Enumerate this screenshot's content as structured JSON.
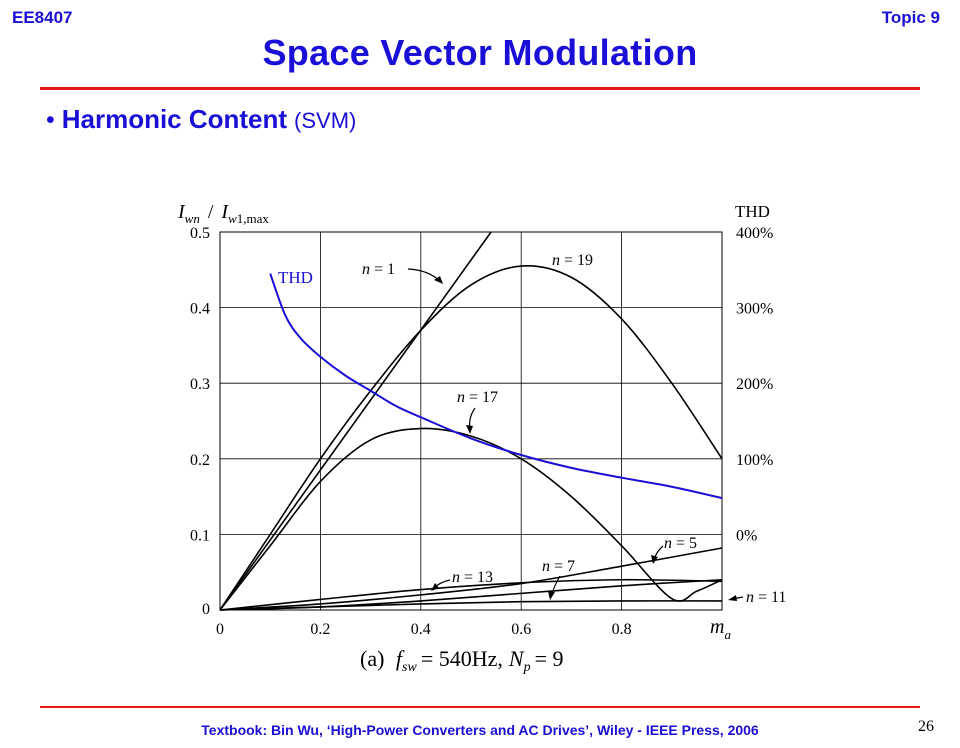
{
  "header": {
    "course": "EE8407",
    "topic": "Topic 9"
  },
  "title": "Space Vector Modulation",
  "bullet": {
    "bullet_char": "•",
    "heading": "Harmonic Content",
    "sub": "(SVM)"
  },
  "footer": "Textbook: Bin Wu, ‘High-Power Converters and AC Drives’, Wiley - IEEE Press, 2006",
  "page_number": "26",
  "colors": {
    "accent": "#1a0fd6",
    "rule": "#e01b1b",
    "thd_curve": "#1a0fd6",
    "harmonic_curves": "#000000"
  },
  "chart_data": {
    "type": "line",
    "ylabel_left": "I_wn / I_w1,max",
    "ylabel_right": "THD",
    "xlabel": "m_a",
    "x_ticks": [
      "0",
      "0.2",
      "0.4",
      "0.6",
      "0.8"
    ],
    "y_ticks_left": [
      "0",
      "0.1",
      "0.2",
      "0.3",
      "0.4",
      "0.5"
    ],
    "y_ticks_right": [
      "0%",
      "100%",
      "200%",
      "300%",
      "400%"
    ],
    "xlim": [
      0,
      1.08
    ],
    "ylim": [
      0,
      0.5
    ],
    "thd_scale": {
      "percent_zero_at_y": 0.1,
      "percent_per_0_1_y": 100
    },
    "grid": true,
    "caption": {
      "prefix": "(a)",
      "text": "f_sw = 540Hz, N_p = 9"
    },
    "series": [
      {
        "name": "n = 1",
        "axis": "left",
        "x": [
          0,
          0.54
        ],
        "y": [
          0,
          0.5
        ]
      },
      {
        "name": "n = 19",
        "axis": "left",
        "x": [
          0,
          0.1,
          0.2,
          0.3,
          0.4,
          0.5,
          0.6,
          0.7,
          0.8,
          0.9,
          1.0
        ],
        "y": [
          0,
          0.1,
          0.2,
          0.29,
          0.37,
          0.43,
          0.455,
          0.44,
          0.385,
          0.3,
          0.2
        ]
      },
      {
        "name": "n = 17",
        "axis": "left",
        "x": [
          0,
          0.1,
          0.2,
          0.3,
          0.4,
          0.5,
          0.6,
          0.7,
          0.8,
          0.9,
          0.95,
          1.0
        ],
        "y": [
          0,
          0.085,
          0.17,
          0.225,
          0.24,
          0.23,
          0.2,
          0.15,
          0.085,
          0.015,
          0.025,
          0.04
        ]
      },
      {
        "name": "n = 5",
        "axis": "left",
        "x": [
          0,
          0.2,
          0.4,
          0.6,
          0.8,
          1.0
        ],
        "y": [
          0,
          0.008,
          0.02,
          0.035,
          0.058,
          0.082
        ]
      },
      {
        "name": "n = 7",
        "axis": "left",
        "x": [
          0,
          0.2,
          0.4,
          0.6,
          0.8,
          1.0
        ],
        "y": [
          0,
          0.004,
          0.012,
          0.022,
          0.032,
          0.04
        ]
      },
      {
        "name": "n = 13",
        "axis": "left",
        "x": [
          0,
          0.2,
          0.4,
          0.6,
          0.8,
          1.0
        ],
        "y": [
          0,
          0.014,
          0.027,
          0.036,
          0.04,
          0.038
        ]
      },
      {
        "name": "n = 11",
        "axis": "left",
        "x": [
          0,
          0.2,
          0.4,
          0.6,
          0.8,
          1.0
        ],
        "y": [
          0,
          0.004,
          0.008,
          0.011,
          0.012,
          0.012
        ]
      },
      {
        "name": "THD",
        "axis": "right",
        "x": [
          0.1,
          0.13,
          0.16,
          0.2,
          0.25,
          0.3,
          0.35,
          0.4,
          0.5,
          0.6,
          0.7,
          0.8,
          0.9,
          1.0
        ],
        "y": [
          0.445,
          0.39,
          0.36,
          0.335,
          0.31,
          0.29,
          0.27,
          0.255,
          0.227,
          0.205,
          0.188,
          0.175,
          0.163,
          0.148
        ]
      }
    ]
  }
}
